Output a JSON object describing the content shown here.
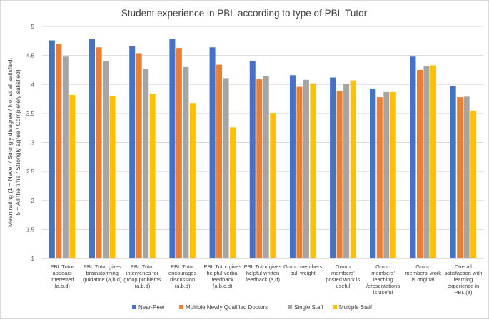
{
  "chart_data": {
    "type": "bar",
    "title": "Student experience in PBL according to type of PBL Tutor",
    "xlabel": "",
    "ylabel_lines": [
      "Mean rating (1 = Never / Strongly disagree / Not at all satisfied,",
      "5 = All the time / Strongly agree / Completely satisfied)"
    ],
    "ylim": [
      1,
      5
    ],
    "yticks": [
      1,
      1.5,
      2,
      2.5,
      3,
      3.5,
      4,
      4.5,
      5
    ],
    "ytick_labels": [
      "1",
      "1.5",
      "2",
      "2.5",
      "3",
      "3.5",
      "4",
      "4.5",
      "5"
    ],
    "grid": true,
    "legend_position": "bottom",
    "categories": [
      [
        "PBL Tutor",
        "appears",
        "interested",
        "(a,b,d)"
      ],
      [
        "PBL Tutor gives",
        "brainstorming",
        "guidance (a,b,d)"
      ],
      [
        "PBL Tutor",
        "intervenes for",
        "group problems",
        "(a,b,d)"
      ],
      [
        "PBL Tutor",
        "encourages",
        "discussion",
        "(a,b,d)"
      ],
      [
        "PBL Tutor gives",
        "helpful verbal",
        "feedback",
        "(a,b,c,d)"
      ],
      [
        "PBL Tutor gives",
        "helpful written",
        "feedback (a,d)"
      ],
      [
        "Group members",
        "pull weight"
      ],
      [
        "Group",
        "members'",
        "posted work is",
        "useful"
      ],
      [
        "Group",
        "members'",
        "teaching",
        "/presentations",
        "is useful"
      ],
      [
        "Group",
        "members' work",
        "is original"
      ],
      [
        "Overall",
        "satisfaction with",
        "learning",
        "experience in",
        "PBL (a)"
      ]
    ],
    "series": [
      {
        "name": "Near-Peer",
        "color": "#4472c4",
        "values": [
          4.76,
          4.78,
          4.66,
          4.79,
          4.64,
          4.41,
          4.16,
          4.12,
          3.93,
          4.48,
          3.97
        ]
      },
      {
        "name": "Multiple Newly Qualified Doctors",
        "color": "#ed7d31",
        "values": [
          4.7,
          4.64,
          4.54,
          4.63,
          4.34,
          4.09,
          3.96,
          3.88,
          3.78,
          4.25,
          3.78
        ]
      },
      {
        "name": "Single Staff",
        "color": "#a5a5a5",
        "values": [
          4.48,
          4.4,
          4.27,
          4.3,
          4.11,
          4.14,
          4.08,
          4.01,
          3.87,
          4.31,
          3.79
        ]
      },
      {
        "name": "Multiple Staff",
        "color": "#ffc000",
        "values": [
          3.82,
          3.8,
          3.84,
          3.68,
          3.26,
          3.51,
          4.02,
          4.07,
          3.87,
          4.33,
          3.55
        ]
      }
    ]
  }
}
